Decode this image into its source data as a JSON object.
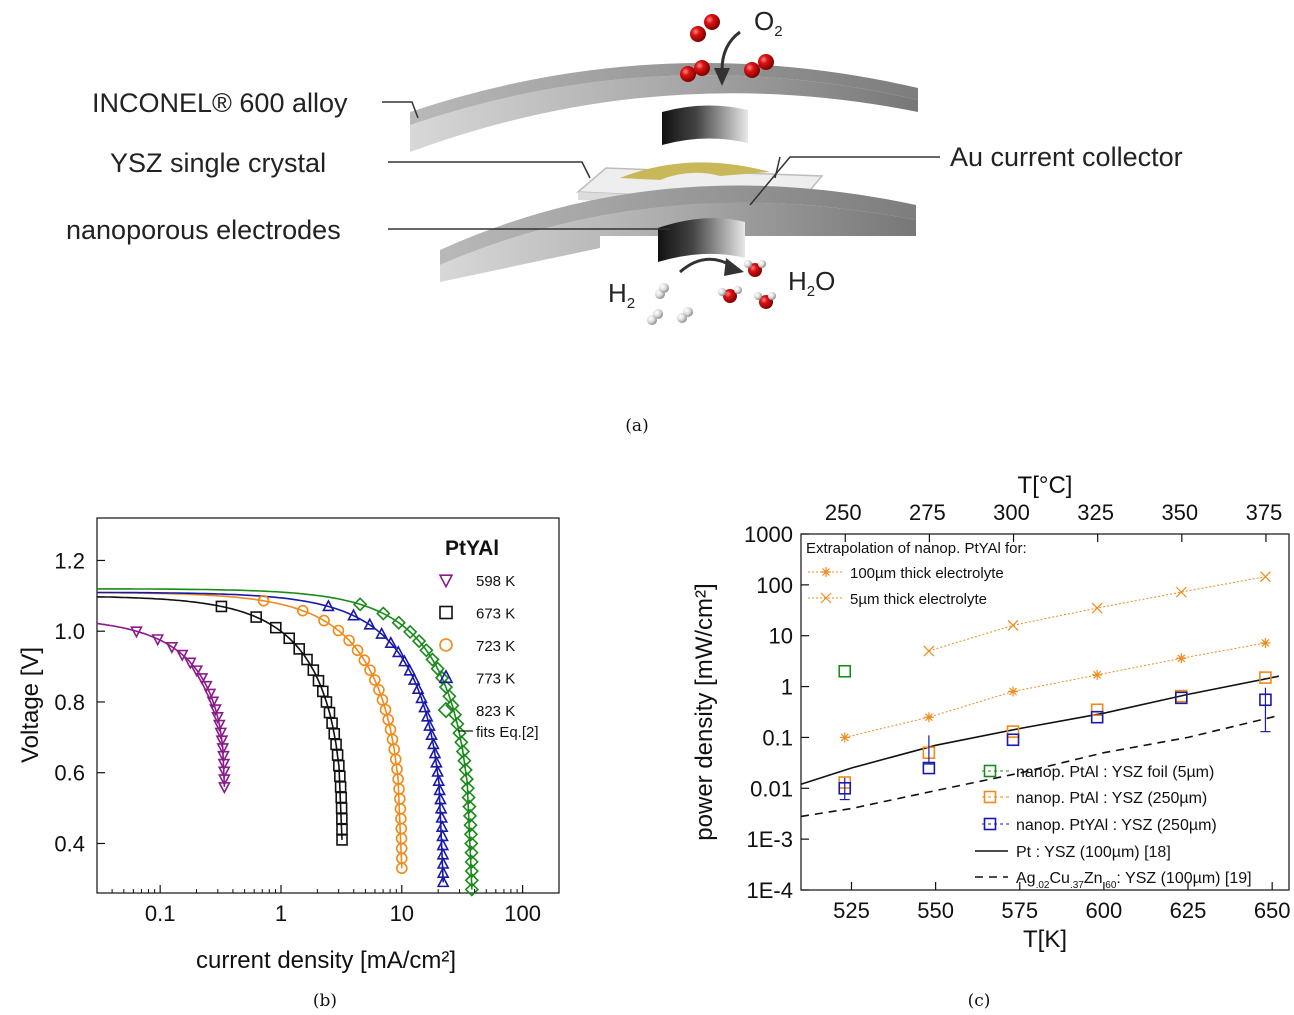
{
  "panel_a": {
    "caption": "(a)",
    "labels": {
      "inconel": "INCONEL® 600 alloy",
      "ysz": "YSZ single crystal",
      "nano": "nanoporous electrodes",
      "au": "Au current collector",
      "o2_main": "O",
      "o2_sub": "2",
      "h2_main": "H",
      "h2_sub": "2",
      "h2o_h": "H",
      "h2o_sub": "2",
      "h2o_o": "O"
    },
    "colors": {
      "steel": "#8a8a8a",
      "gold": "#c9b85a",
      "oxygen": "#cc1111",
      "hydrogen": "#dddddd"
    }
  },
  "chart_data": [
    {
      "type": "scatter",
      "caption": "(b)",
      "xlabel": "current density [mA/cm²]",
      "ylabel": "Voltage [V]",
      "xscale": "log",
      "xlim": [
        0.03,
        200
      ],
      "ylim": [
        0.26,
        1.32
      ],
      "xticks": [
        0.1,
        1,
        10,
        100
      ],
      "xtick_labels": [
        "0.1",
        "1",
        "10",
        "100"
      ],
      "yticks": [
        0.4,
        0.6,
        0.8,
        1.0,
        1.2
      ],
      "ytick_labels": [
        "0.4",
        "0.6",
        "0.8",
        "1.0",
        "1.2"
      ],
      "legend_title": "PtYAl",
      "legend_placement": "top-right",
      "fit_label": "fits Eq.[2]",
      "series": [
        {
          "name": "598 K",
          "marker": "triangle-down",
          "color": "#8b1a8b",
          "i0": 0.34,
          "v_max": 1.04,
          "v_min": 0.56,
          "v_step": 0.022
        },
        {
          "name": "673 K",
          "marker": "square",
          "color": "#111111",
          "i0": 3.2,
          "v_max": 1.1,
          "v_min": 0.41,
          "v_step": 0.03
        },
        {
          "name": "723 K",
          "marker": "circle",
          "color": "#f08a1a",
          "i0": 10.0,
          "v_max": 1.11,
          "v_min": 0.33,
          "v_step": 0.028
        },
        {
          "name": "773 K",
          "marker": "triangle-up",
          "color": "#1a1aa8",
          "i0": 22.0,
          "v_max": 1.11,
          "v_min": 0.29,
          "v_step": 0.026
        },
        {
          "name": "823 K",
          "marker": "diamond",
          "color": "#1a8a1a",
          "i0": 38.0,
          "v_max": 1.12,
          "v_min": 0.27,
          "v_step": 0.026
        }
      ]
    },
    {
      "type": "line",
      "caption": "(c)",
      "xlabel": "T[K]",
      "x2label": "T[°C]",
      "ylabel": "power density [mW/cm²]",
      "yscale": "log",
      "xlim": [
        510,
        655
      ],
      "ylim": [
        0.0001,
        1000
      ],
      "xticks": [
        525,
        550,
        575,
        600,
        625,
        650
      ],
      "x2ticks_C": [
        250,
        275,
        300,
        325,
        350,
        375
      ],
      "yticks": [
        0.0001,
        0.001,
        0.01,
        0.1,
        1,
        10,
        100,
        1000
      ],
      "ytick_labels": [
        "1E-4",
        "1E-3",
        "0.01",
        "0.1",
        "1",
        "10",
        "100",
        "1000"
      ],
      "extrap_title": "Extrapolation of nanop. PtYAl for:",
      "legend_placement": "bottom-right",
      "extrapolations": [
        {
          "name": "100µm thick electrolyte",
          "marker": "asterisk",
          "color": "#f08a1a",
          "x": [
            523,
            548,
            573,
            598,
            623,
            648
          ],
          "y": [
            0.1,
            0.25,
            0.8,
            1.7,
            3.6,
            7.2
          ]
        },
        {
          "name": "5µm thick electrolyte",
          "marker": "x",
          "color": "#f08a1a",
          "x": [
            548,
            573,
            598,
            623,
            648
          ],
          "y": [
            5,
            16,
            35,
            72,
            145
          ]
        }
      ],
      "series": [
        {
          "name": "nanop. PtAl : YSZ foil (5µm)",
          "marker": "square",
          "color": "#1a8a1a",
          "x": [
            523
          ],
          "y": [
            2.0
          ]
        },
        {
          "name": "nanop. PtAl : YSZ (250µm)",
          "marker": "square",
          "color": "#f08a1a",
          "x": [
            523,
            548,
            573,
            598,
            623,
            648
          ],
          "y": [
            0.013,
            0.05,
            0.13,
            0.35,
            0.65,
            1.5
          ]
        },
        {
          "name": "nanop. PtYAl : YSZ (250µm)",
          "marker": "square",
          "color": "#1a1aa8",
          "x": [
            523,
            548,
            573,
            598,
            623,
            648
          ],
          "y": [
            0.01,
            0.025,
            0.09,
            0.25,
            0.6,
            0.55
          ]
        },
        {
          "name": "Pt : YSZ (100µm) [18]",
          "style": "solid",
          "color": "#111111",
          "x": [
            510,
            525,
            550,
            575,
            600,
            625,
            652
          ],
          "y": [
            0.012,
            0.025,
            0.07,
            0.15,
            0.3,
            0.7,
            1.6
          ]
        },
        {
          "name": "Ag.02Cu.37Zn.60: YSZ (100µm) [19]",
          "style": "dashed",
          "color": "#111111",
          "x": [
            510,
            525,
            550,
            575,
            600,
            625,
            652
          ],
          "y": [
            0.0028,
            0.004,
            0.009,
            0.02,
            0.05,
            0.1,
            0.27
          ]
        }
      ]
    }
  ],
  "legend_c_text": {
    "l1": "nanop. PtAl : YSZ foil (5µm)",
    "l2": "nanop. PtAl : YSZ (250µm)",
    "l3": "nanop. PtYAl : YSZ (250µm)",
    "l4": "Pt : YSZ (100µm) [18]",
    "l5_a": "Ag",
    "l5_s1": ".02",
    "l5_b": "Cu",
    "l5_s2": ".37",
    "l5_c": "Zn",
    "l5_s3": ".60",
    "l5_d": ": YSZ (100µm) [19]"
  }
}
